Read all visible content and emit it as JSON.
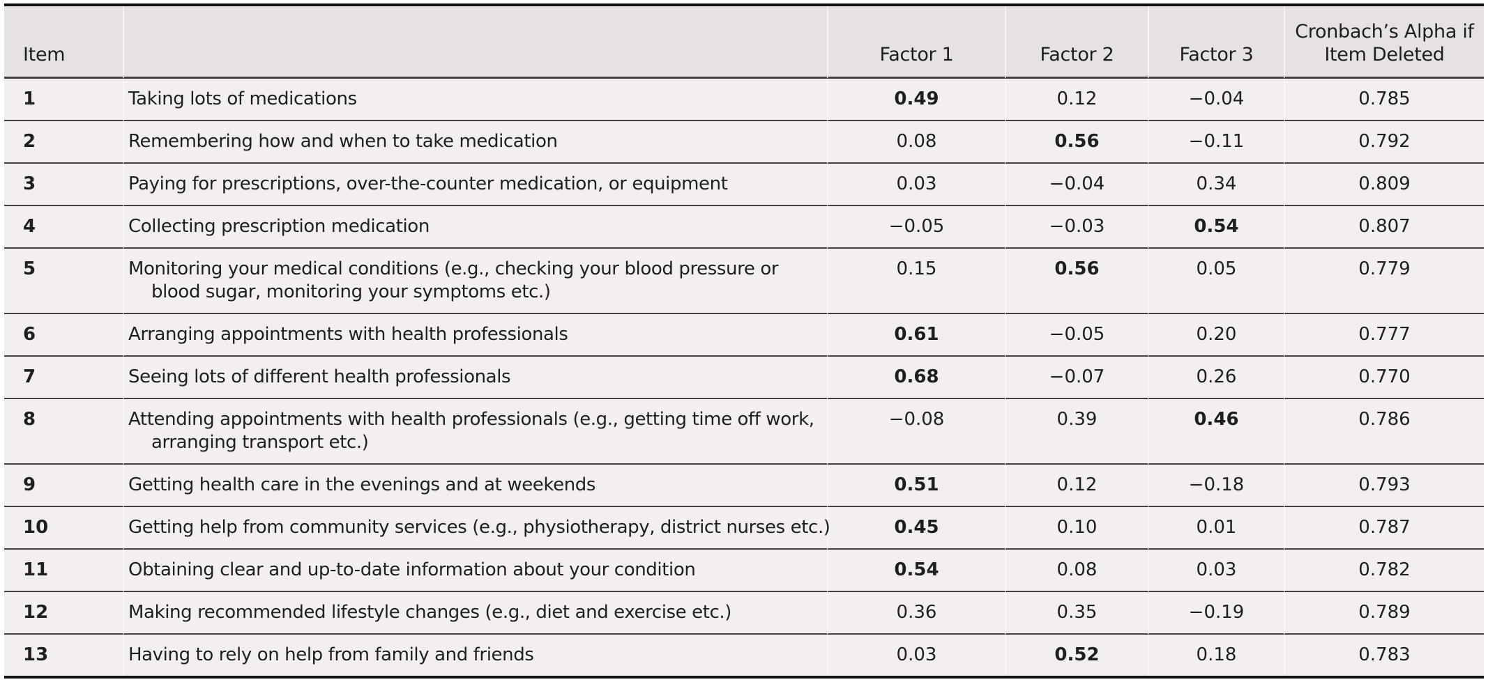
{
  "colors": {
    "page_bg": "#ffffff",
    "header_bg": "#e5e1e5",
    "row_bg": "#f2eef2",
    "divider_light": "#f8f5f8",
    "rule_dark": "#454045",
    "rule_black": "#141014",
    "text": "#1f1f1f"
  },
  "table": {
    "header": {
      "item_label": "Item",
      "description_label": "",
      "factor1_label": "Factor 1",
      "factor2_label": "Factor 2",
      "factor3_label": "Factor 3",
      "alpha_lines": [
        "Cronbach’s Alpha if",
        "Item Deleted"
      ]
    },
    "rows": [
      {
        "num": "1",
        "desc": [
          "Taking lots of medications"
        ],
        "values": [
          "0.49",
          "0.12",
          "−0.04"
        ],
        "bold_factor": 1,
        "alpha": "0.785"
      },
      {
        "num": "2",
        "desc": [
          "Remembering how and when to take medication"
        ],
        "values": [
          "0.08",
          "0.56",
          "−0.11"
        ],
        "bold_factor": 2,
        "alpha": "0.792"
      },
      {
        "num": "3",
        "desc": [
          "Paying for prescriptions, over-the-counter medication, or equipment"
        ],
        "values": [
          "0.03",
          "−0.04",
          "0.34"
        ],
        "bold_factor": 0,
        "alpha": "0.809"
      },
      {
        "num": "4",
        "desc": [
          "Collecting prescription medication"
        ],
        "values": [
          "−0.05",
          "−0.03",
          "0.54"
        ],
        "bold_factor": 3,
        "alpha": "0.807"
      },
      {
        "num": "5",
        "desc": [
          "Monitoring your medical conditions (e.g., checking your blood pressure or",
          "blood sugar, monitoring your symptoms etc.)"
        ],
        "values": [
          "0.15",
          "0.56",
          "0.05"
        ],
        "bold_factor": 2,
        "alpha": "0.779"
      },
      {
        "num": "6",
        "desc": [
          "Arranging appointments with health professionals"
        ],
        "values": [
          "0.61",
          "−0.05",
          "0.20"
        ],
        "bold_factor": 1,
        "alpha": "0.777"
      },
      {
        "num": "7",
        "desc": [
          "Seeing lots of different health professionals"
        ],
        "values": [
          "0.68",
          "−0.07",
          "0.26"
        ],
        "bold_factor": 1,
        "alpha": "0.770"
      },
      {
        "num": "8",
        "desc": [
          "Attending appointments with health professionals (e.g., getting time off work,",
          "arranging transport etc.)"
        ],
        "values": [
          "−0.08",
          "0.39",
          "0.46"
        ],
        "bold_factor": 3,
        "alpha": "0.786"
      },
      {
        "num": "9",
        "desc": [
          "Getting health care in the evenings and at weekends"
        ],
        "values": [
          "0.51",
          "0.12",
          "−0.18"
        ],
        "bold_factor": 1,
        "alpha": "0.793"
      },
      {
        "num": "10",
        "desc": [
          "Getting help from community services (e.g., physiotherapy, district nurses etc.)"
        ],
        "values": [
          "0.45",
          "0.10",
          "0.01"
        ],
        "bold_factor": 1,
        "alpha": "0.787"
      },
      {
        "num": "11",
        "desc": [
          "Obtaining clear and up-to-date information about your condition"
        ],
        "values": [
          "0.54",
          "0.08",
          "0.03"
        ],
        "bold_factor": 1,
        "alpha": "0.782"
      },
      {
        "num": "12",
        "desc": [
          "Making recommended lifestyle changes (e.g., diet and exercise etc.)"
        ],
        "values": [
          "0.36",
          "0.35",
          "−0.19"
        ],
        "bold_factor": 0,
        "alpha": "0.789"
      },
      {
        "num": "13",
        "desc": [
          "Having to rely on help from family and friends"
        ],
        "values": [
          "0.03",
          "0.52",
          "0.18"
        ],
        "bold_factor": 2,
        "alpha": "0.783"
      }
    ]
  }
}
